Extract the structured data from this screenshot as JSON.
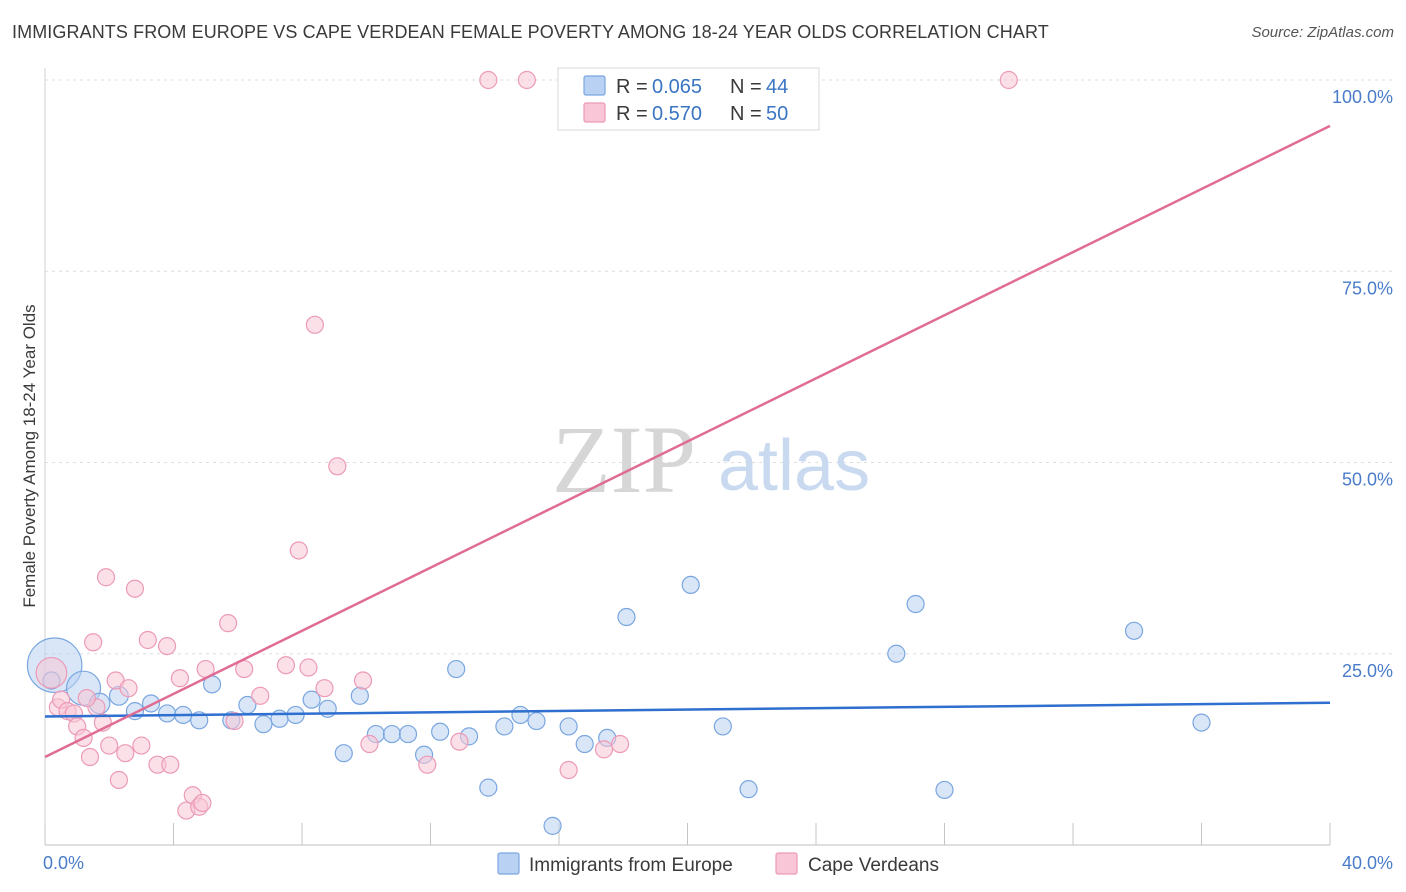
{
  "chart_data": {
    "type": "scatter",
    "title": "IMMIGRANTS FROM EUROPE VS CAPE VERDEAN FEMALE POVERTY AMONG 18-24 YEAR OLDS CORRELATION CHART",
    "source": "Source: ZipAtlas.com",
    "xlabel": "",
    "ylabel": "Female Poverty Among 18-24 Year Olds",
    "xlim": [
      0,
      40
    ],
    "ylim": [
      0,
      100
    ],
    "x_tick_labels": [
      "0.0%",
      "40.0%"
    ],
    "y_tick_labels": [
      "25.0%",
      "50.0%",
      "75.0%",
      "100.0%"
    ],
    "y_tick_values": [
      25,
      50,
      75,
      100
    ],
    "watermark": {
      "zip": "ZIP",
      "atlas": "atlas"
    },
    "colors": {
      "europe_fill": "#b9d1f2",
      "europe_stroke": "#7aa6e0",
      "europe_line": "#2f6fcf",
      "cape_fill": "#f8c6d6",
      "cape_stroke": "#ec9ab7",
      "cape_line": "#e06b94"
    },
    "legend": [
      {
        "r_label": "R =",
        "r_value": "0.065",
        "n_label": "N =",
        "n_value": "44"
      },
      {
        "r_label": "R =",
        "r_value": "0.570",
        "n_label": "N =",
        "n_value": "50"
      }
    ],
    "series": [
      {
        "name": "Immigrants from Europe",
        "trend": {
          "x": [
            0,
            40
          ],
          "y": [
            16.8,
            18.6
          ]
        },
        "points": [
          {
            "x": 0.3,
            "y": 23.5,
            "s": 3.2
          },
          {
            "x": 1.2,
            "y": 20.5,
            "s": 2.0
          },
          {
            "x": 1.7,
            "y": 18.5,
            "s": 1.2
          },
          {
            "x": 2.3,
            "y": 19.5,
            "s": 1.1
          },
          {
            "x": 2.8,
            "y": 17.5,
            "s": 1.0
          },
          {
            "x": 3.3,
            "y": 18.5,
            "s": 1.0
          },
          {
            "x": 3.8,
            "y": 17.2,
            "s": 1.0
          },
          {
            "x": 4.3,
            "y": 17.0,
            "s": 1.0
          },
          {
            "x": 4.8,
            "y": 16.3,
            "s": 1.0
          },
          {
            "x": 5.2,
            "y": 21.0,
            "s": 1.0
          },
          {
            "x": 5.8,
            "y": 16.3,
            "s": 1.0
          },
          {
            "x": 6.3,
            "y": 18.3,
            "s": 1.0
          },
          {
            "x": 6.8,
            "y": 15.8,
            "s": 1.0
          },
          {
            "x": 7.3,
            "y": 16.5,
            "s": 1.0
          },
          {
            "x": 7.8,
            "y": 17.0,
            "s": 1.0
          },
          {
            "x": 8.3,
            "y": 19.0,
            "s": 1.0
          },
          {
            "x": 8.8,
            "y": 17.8,
            "s": 1.0
          },
          {
            "x": 9.3,
            "y": 12.0,
            "s": 1.0
          },
          {
            "x": 9.8,
            "y": 19.5,
            "s": 1.0
          },
          {
            "x": 10.3,
            "y": 14.5,
            "s": 1.0
          },
          {
            "x": 10.8,
            "y": 14.5,
            "s": 1.0
          },
          {
            "x": 11.3,
            "y": 14.5,
            "s": 1.0
          },
          {
            "x": 11.8,
            "y": 11.8,
            "s": 1.0
          },
          {
            "x": 12.3,
            "y": 14.8,
            "s": 1.0
          },
          {
            "x": 12.8,
            "y": 23.0,
            "s": 1.0
          },
          {
            "x": 13.2,
            "y": 14.2,
            "s": 1.0
          },
          {
            "x": 13.8,
            "y": 7.5,
            "s": 1.0
          },
          {
            "x": 14.3,
            "y": 15.5,
            "s": 1.0
          },
          {
            "x": 14.8,
            "y": 17.0,
            "s": 1.0
          },
          {
            "x": 15.3,
            "y": 16.2,
            "s": 1.0
          },
          {
            "x": 15.8,
            "y": 2.5,
            "s": 1.0
          },
          {
            "x": 16.3,
            "y": 15.5,
            "s": 1.0
          },
          {
            "x": 16.8,
            "y": 13.2,
            "s": 1.0
          },
          {
            "x": 17.5,
            "y": 14.0,
            "s": 1.0
          },
          {
            "x": 18.1,
            "y": 29.8,
            "s": 1.0
          },
          {
            "x": 20.1,
            "y": 34.0,
            "s": 1.0
          },
          {
            "x": 21.1,
            "y": 15.5,
            "s": 1.0
          },
          {
            "x": 21.9,
            "y": 7.3,
            "s": 1.0
          },
          {
            "x": 26.5,
            "y": 25.0,
            "s": 1.0
          },
          {
            "x": 27.1,
            "y": 31.5,
            "s": 1.0
          },
          {
            "x": 28.0,
            "y": 7.2,
            "s": 1.0
          },
          {
            "x": 33.9,
            "y": 28.0,
            "s": 1.0
          },
          {
            "x": 36.0,
            "y": 16.0,
            "s": 1.0
          },
          {
            "x": 0.2,
            "y": 21.5,
            "s": 1.0
          }
        ]
      },
      {
        "name": "Cape Verdeans",
        "trend": {
          "x": [
            0,
            40
          ],
          "y": [
            11.5,
            94.0
          ]
        },
        "points": [
          {
            "x": 0.2,
            "y": 22.5,
            "s": 1.8
          },
          {
            "x": 0.4,
            "y": 18.0,
            "s": 1.0
          },
          {
            "x": 0.5,
            "y": 19.0,
            "s": 1.0
          },
          {
            "x": 0.7,
            "y": 17.5,
            "s": 1.0
          },
          {
            "x": 0.9,
            "y": 17.2,
            "s": 1.0
          },
          {
            "x": 1.0,
            "y": 15.5,
            "s": 1.0
          },
          {
            "x": 1.2,
            "y": 14.0,
            "s": 1.0
          },
          {
            "x": 1.4,
            "y": 11.5,
            "s": 1.0
          },
          {
            "x": 1.5,
            "y": 26.5,
            "s": 1.0
          },
          {
            "x": 1.6,
            "y": 18.0,
            "s": 1.0
          },
          {
            "x": 1.8,
            "y": 16.0,
            "s": 1.0
          },
          {
            "x": 1.9,
            "y": 35.0,
            "s": 1.0
          },
          {
            "x": 2.0,
            "y": 13.0,
            "s": 1.0
          },
          {
            "x": 2.2,
            "y": 21.5,
            "s": 1.0
          },
          {
            "x": 2.3,
            "y": 8.5,
            "s": 1.0
          },
          {
            "x": 2.5,
            "y": 12.0,
            "s": 1.0
          },
          {
            "x": 2.6,
            "y": 20.5,
            "s": 1.0
          },
          {
            "x": 2.8,
            "y": 33.5,
            "s": 1.0
          },
          {
            "x": 3.0,
            "y": 13.0,
            "s": 1.0
          },
          {
            "x": 3.2,
            "y": 26.8,
            "s": 1.0
          },
          {
            "x": 3.5,
            "y": 10.5,
            "s": 1.0
          },
          {
            "x": 3.8,
            "y": 26.0,
            "s": 1.0
          },
          {
            "x": 3.9,
            "y": 10.5,
            "s": 1.0
          },
          {
            "x": 4.2,
            "y": 21.8,
            "s": 1.0
          },
          {
            "x": 4.4,
            "y": 4.5,
            "s": 1.0
          },
          {
            "x": 4.6,
            "y": 6.5,
            "s": 1.0
          },
          {
            "x": 4.8,
            "y": 5.0,
            "s": 1.0
          },
          {
            "x": 4.9,
            "y": 5.5,
            "s": 1.0
          },
          {
            "x": 5.0,
            "y": 23.0,
            "s": 1.0
          },
          {
            "x": 5.7,
            "y": 29.0,
            "s": 1.0
          },
          {
            "x": 5.9,
            "y": 16.2,
            "s": 1.0
          },
          {
            "x": 6.2,
            "y": 23.0,
            "s": 1.0
          },
          {
            "x": 6.7,
            "y": 19.5,
            "s": 1.0
          },
          {
            "x": 7.5,
            "y": 23.5,
            "s": 1.0
          },
          {
            "x": 7.9,
            "y": 38.5,
            "s": 1.0
          },
          {
            "x": 8.2,
            "y": 23.2,
            "s": 1.0
          },
          {
            "x": 8.4,
            "y": 68.0,
            "s": 1.0
          },
          {
            "x": 8.7,
            "y": 20.5,
            "s": 1.0
          },
          {
            "x": 9.1,
            "y": 49.5,
            "s": 1.0
          },
          {
            "x": 9.9,
            "y": 21.5,
            "s": 1.0
          },
          {
            "x": 10.1,
            "y": 13.2,
            "s": 1.0
          },
          {
            "x": 11.9,
            "y": 10.5,
            "s": 1.0
          },
          {
            "x": 12.9,
            "y": 13.5,
            "s": 1.0
          },
          {
            "x": 13.8,
            "y": 100.0,
            "s": 1.0
          },
          {
            "x": 15.0,
            "y": 100.0,
            "s": 1.0
          },
          {
            "x": 16.3,
            "y": 9.8,
            "s": 1.0
          },
          {
            "x": 17.4,
            "y": 12.5,
            "s": 1.0
          },
          {
            "x": 17.9,
            "y": 13.2,
            "s": 1.0
          },
          {
            "x": 30.0,
            "y": 100.0,
            "s": 1.0
          },
          {
            "x": 1.3,
            "y": 19.2,
            "s": 1.0
          }
        ]
      }
    ]
  }
}
